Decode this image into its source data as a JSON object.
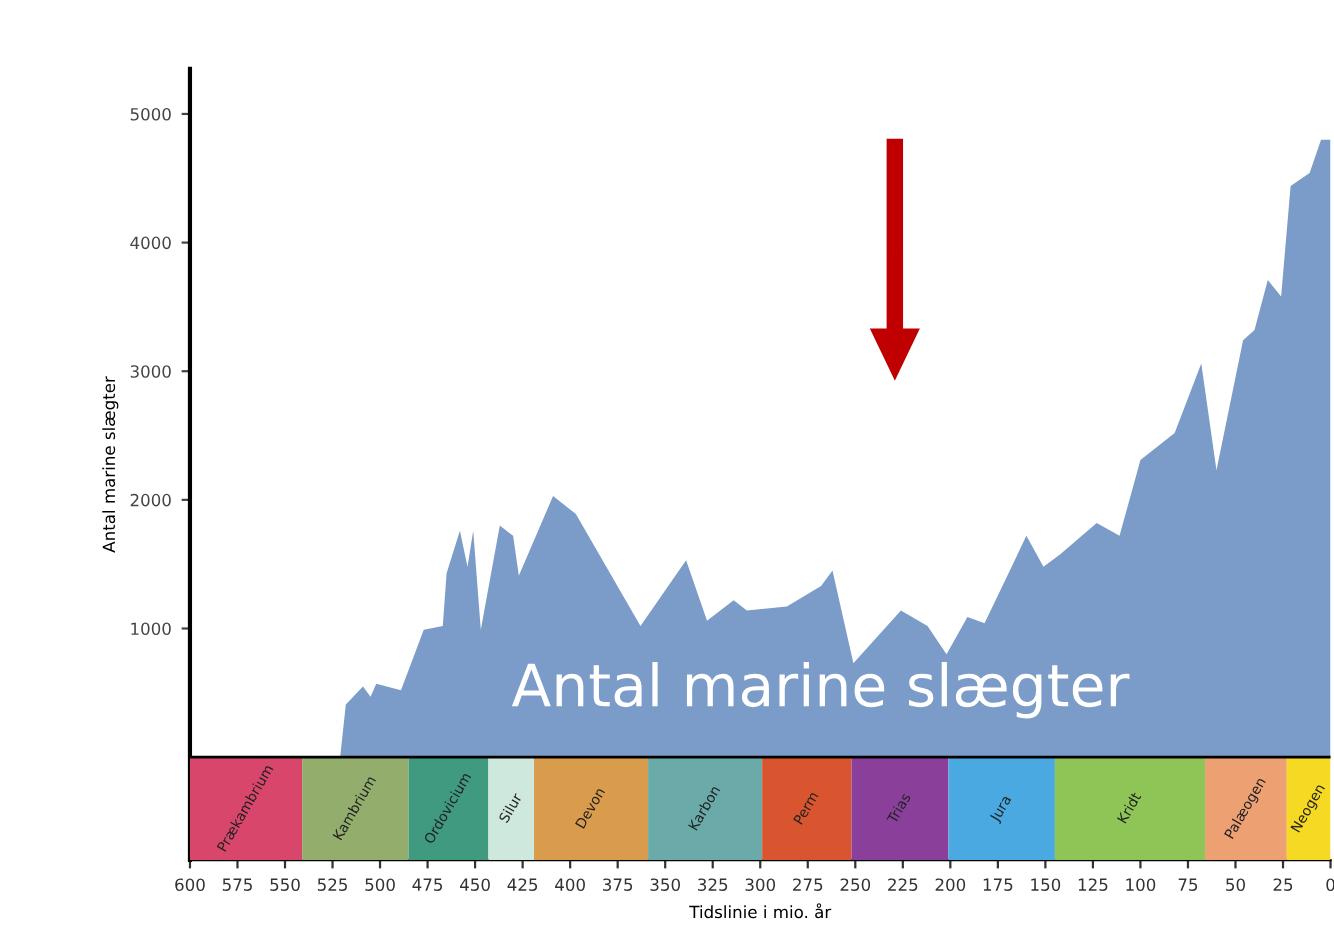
{
  "chart_data": {
    "type": "area",
    "ylabel": "Antal marine slægter",
    "xlabel": "Tidslinie i mio. år",
    "annotations": [
      "Antal marine slægter"
    ],
    "x": [
      521,
      518,
      509,
      505,
      502,
      489,
      477,
      467,
      465,
      458,
      454,
      451,
      447,
      437,
      430,
      427,
      409,
      397,
      363,
      339,
      328,
      314,
      307,
      286,
      268,
      262,
      251,
      226,
      212,
      202,
      191,
      182,
      160,
      151,
      142,
      123,
      111,
      100,
      82,
      68,
      60,
      46,
      40,
      33,
      26,
      21,
      11,
      5,
      0
    ],
    "series": [
      {
        "color": "#7b9bc8",
        "values": [
          0,
          410,
          550,
          470,
          570,
          520,
          990,
          1020,
          1430,
          1760,
          1480,
          1760,
          990,
          1800,
          1720,
          1410,
          2030,
          1890,
          1020,
          1530,
          1060,
          1220,
          1140,
          1170,
          1330,
          1450,
          730,
          1140,
          1020,
          800,
          1090,
          1040,
          1720,
          1480,
          1580,
          1820,
          1720,
          2310,
          2520,
          3060,
          2230,
          3240,
          3320,
          3710,
          3580,
          4440,
          4540,
          4800,
          4800
        ]
      }
    ],
    "xlim": [
      600,
      0
    ],
    "ylim": [
      -800,
      5350
    ],
    "xticks": [
      600,
      575,
      550,
      525,
      500,
      475,
      450,
      425,
      400,
      375,
      350,
      325,
      300,
      275,
      250,
      225,
      200,
      175,
      150,
      125,
      100,
      75,
      50,
      25,
      0
    ],
    "yticks": [
      1000,
      2000,
      3000,
      4000,
      5000
    ],
    "grid": false,
    "bands": [
      {
        "axis": "x",
        "from": 600,
        "to": 541,
        "label": "Prækambrium",
        "color": "#d9466c"
      },
      {
        "axis": "x",
        "from": 541,
        "to": 485,
        "label": "Kambrium",
        "color": "#93ad6c"
      },
      {
        "axis": "x",
        "from": 485,
        "to": 443,
        "label": "Ordovicium",
        "color": "#3f9a80"
      },
      {
        "axis": "x",
        "from": 443,
        "to": 419,
        "label": "Silur",
        "color": "#cfe8de"
      },
      {
        "axis": "x",
        "from": 419,
        "to": 359,
        "label": "Devon",
        "color": "#d99b4c"
      },
      {
        "axis": "x",
        "from": 359,
        "to": 299,
        "label": "Karbon",
        "color": "#6aaaa9"
      },
      {
        "axis": "x",
        "from": 299,
        "to": 252,
        "label": "Perm",
        "color": "#d9552f"
      },
      {
        "axis": "x",
        "from": 252,
        "to": 201,
        "label": "Trias",
        "color": "#8a409a"
      },
      {
        "axis": "x",
        "from": 201,
        "to": 145,
        "label": "Jura",
        "color": "#4aa9e0"
      },
      {
        "axis": "x",
        "from": 145,
        "to": 66,
        "label": "Kridt",
        "color": "#8ec556"
      },
      {
        "axis": "x",
        "from": 66,
        "to": 23,
        "label": "Palæogen",
        "color": "#eda173"
      },
      {
        "axis": "x",
        "from": 23,
        "to": 0,
        "label": "Neogen",
        "color": "#f6d922"
      }
    ]
  }
}
